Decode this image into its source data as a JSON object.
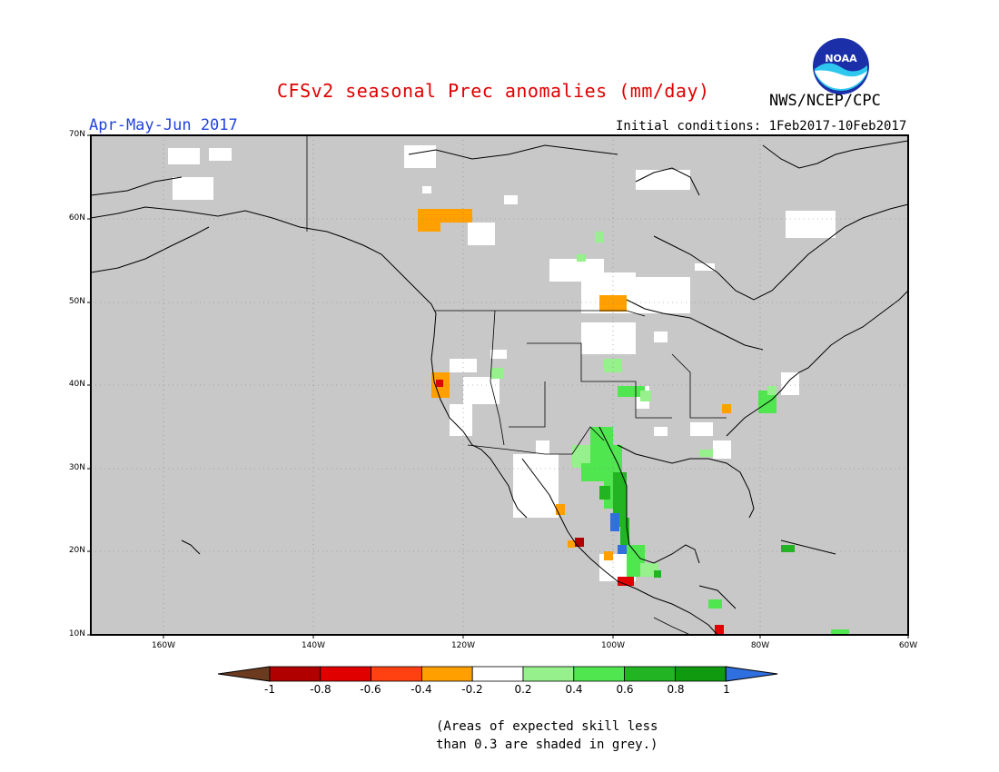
{
  "title": "CFSv2 seasonal Prec anomalies (mm/day)",
  "period": "Apr-May-Jun 2017",
  "initial_conditions": "Initial conditions: 1Feb2017-10Feb2017",
  "agency": "NWS/NCEP/CPC",
  "logo_text": "NOAA",
  "latitude_labels": [
    "70N",
    "60N",
    "50N",
    "40N",
    "30N",
    "20N",
    "10N"
  ],
  "longitude_labels": [
    "160W",
    "140W",
    "120W",
    "100W",
    "80W",
    "60W"
  ],
  "colorbar": {
    "labels": [
      "-1",
      "-0.8",
      "-0.6",
      "-0.4",
      "-0.2",
      "0.2",
      "0.4",
      "0.6",
      "0.8",
      "1"
    ],
    "colors": [
      "#6b3a1f",
      "#b00000",
      "#e00000",
      "#ff4010",
      "#ffa000",
      "#ffffff",
      "#96f08c",
      "#50e650",
      "#22b422",
      "#109a10",
      "#2f6fe0"
    ]
  },
  "note": {
    "line1": "(Areas of expected skill less",
    "line2": "than 0.3 are shaded in grey.)"
  },
  "colors": {
    "grey_mask": "#c8c8c8",
    "title_red": "#e00000",
    "period_blue": "#2244dd"
  }
}
